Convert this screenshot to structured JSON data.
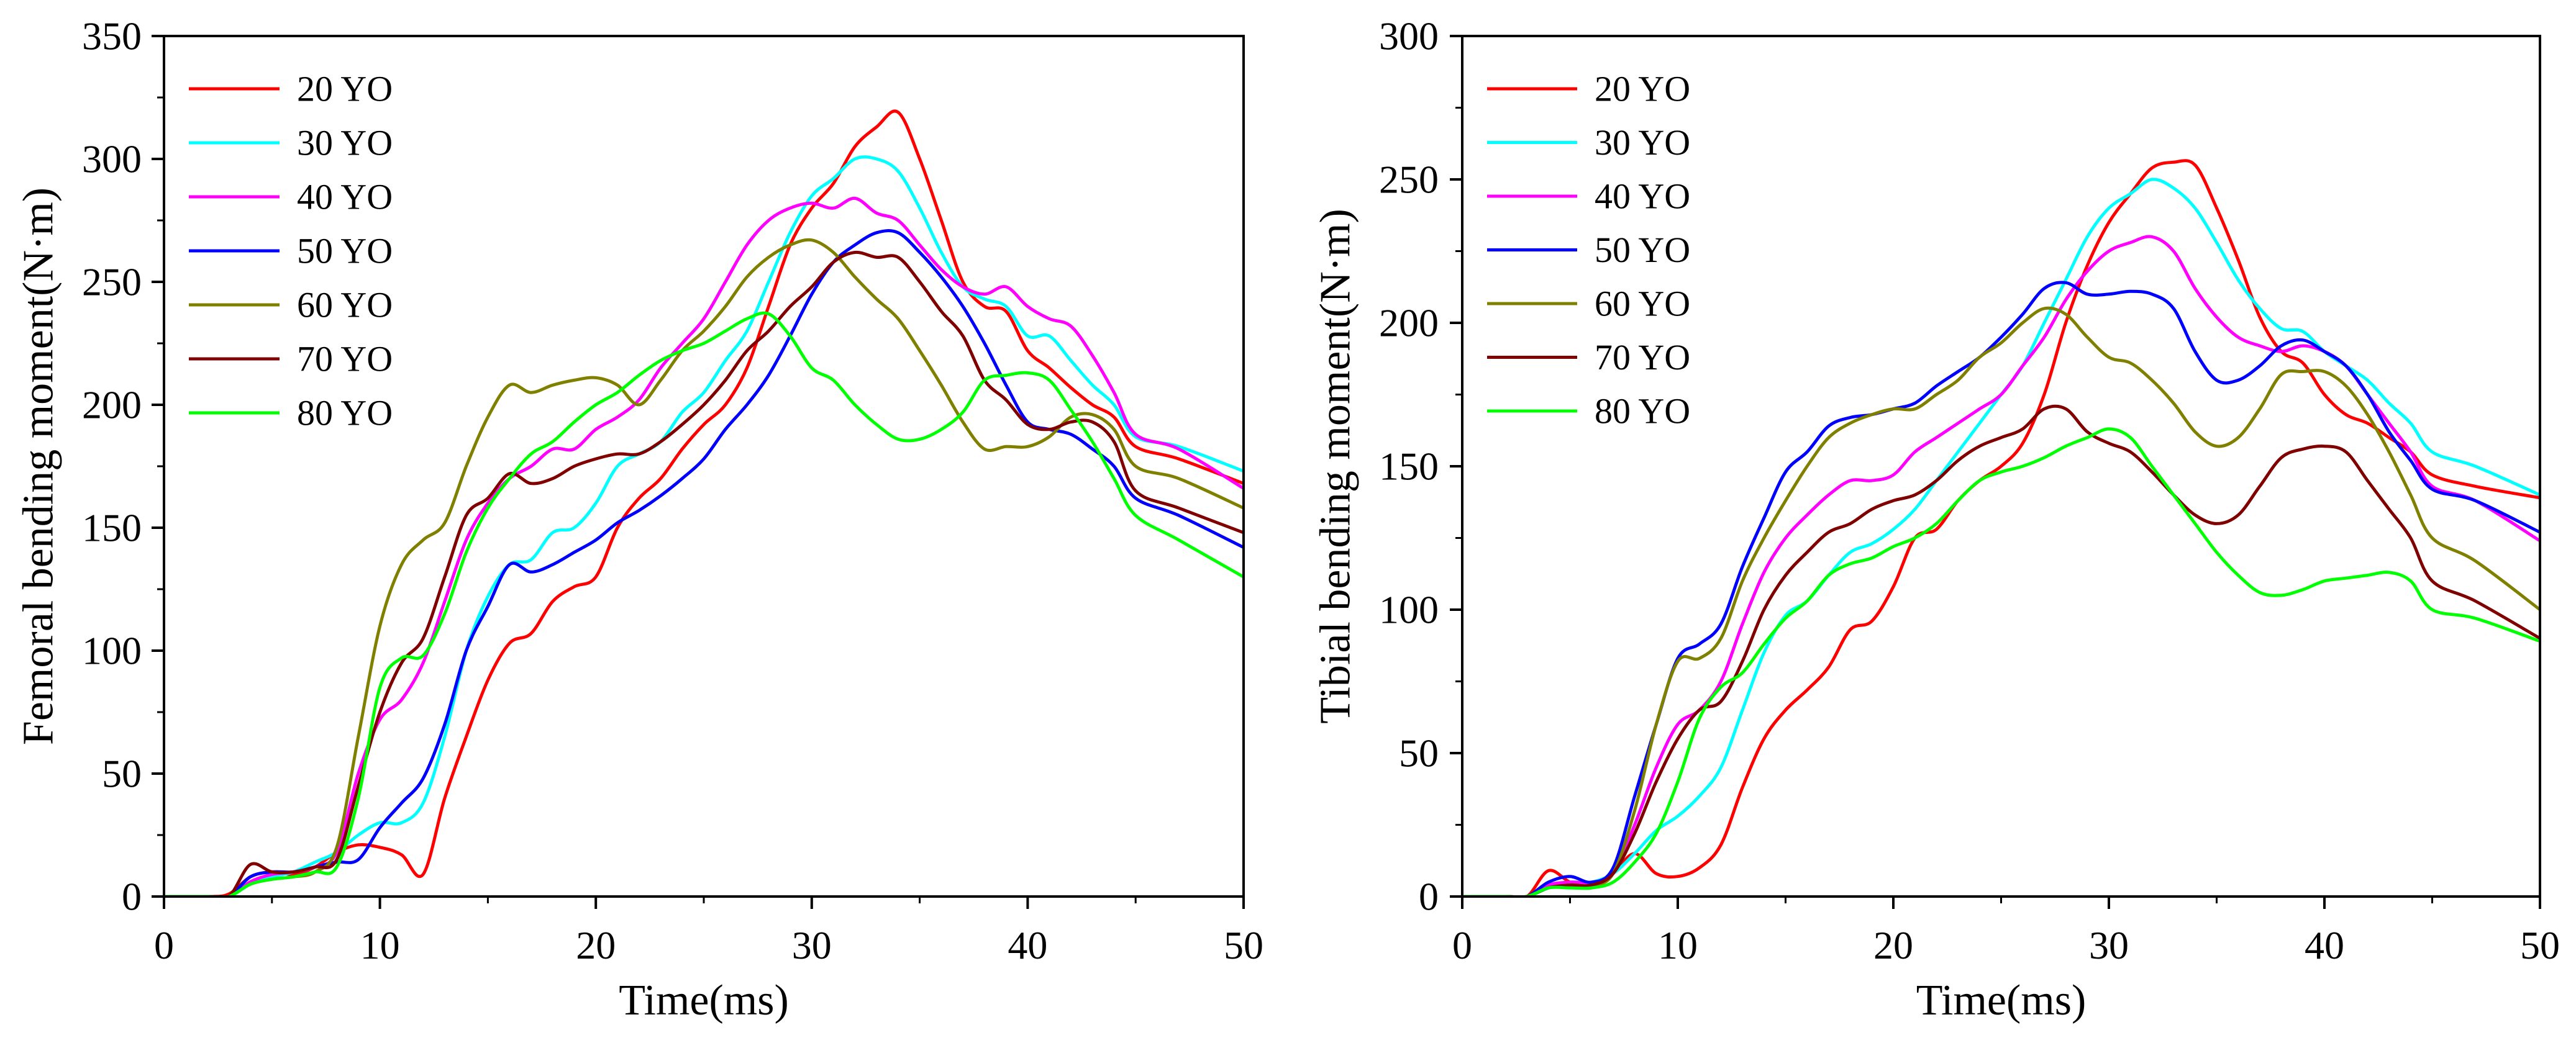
{
  "chart_data": [
    {
      "type": "line",
      "xlabel": "Time(ms)",
      "ylabel": "Femoral bending moment(N·m)",
      "xlim": [
        0,
        50
      ],
      "ylim": [
        0,
        350
      ],
      "xticks": [
        0,
        10,
        20,
        30,
        40,
        50
      ],
      "yticks": [
        0,
        50,
        100,
        150,
        200,
        250,
        300,
        350
      ],
      "grid": false,
      "legend": "top-left",
      "x": [
        0,
        2,
        3,
        4,
        5,
        6,
        7,
        8,
        9,
        10,
        11,
        12,
        13,
        14,
        15,
        16,
        17,
        18,
        19,
        20,
        21,
        22,
        23,
        24,
        25,
        26,
        27,
        28,
        29,
        30,
        31,
        32,
        33,
        34,
        35,
        36,
        37,
        38,
        39,
        40,
        41,
        42,
        43,
        44,
        45,
        47,
        50
      ],
      "series": [
        {
          "name": "20 YO",
          "color": "#ff0000",
          "values": [
            0,
            0,
            1,
            8,
            10,
            9,
            12,
            18,
            21,
            20,
            17,
            9,
            40,
            65,
            88,
            103,
            107,
            120,
            126,
            130,
            150,
            162,
            170,
            182,
            192,
            200,
            215,
            240,
            265,
            280,
            290,
            305,
            313,
            319,
            300,
            275,
            250,
            240,
            238,
            222,
            215,
            207,
            200,
            195,
            183,
            178,
            168
          ]
        },
        {
          "name": "30 YO",
          "color": "#00ffff",
          "values": [
            0,
            0,
            0,
            5,
            8,
            10,
            14,
            18,
            25,
            30,
            30,
            38,
            65,
            100,
            122,
            135,
            137,
            148,
            150,
            160,
            175,
            180,
            185,
            197,
            205,
            218,
            230,
            250,
            270,
            285,
            292,
            300,
            300,
            295,
            280,
            262,
            248,
            243,
            240,
            228,
            228,
            218,
            208,
            200,
            187,
            183,
            173
          ]
        },
        {
          "name": "40 YO",
          "color": "#ff00ff",
          "values": [
            0,
            0,
            0,
            6,
            9,
            10,
            12,
            18,
            50,
            72,
            80,
            95,
            120,
            145,
            160,
            170,
            175,
            182,
            182,
            190,
            195,
            202,
            215,
            225,
            235,
            250,
            265,
            275,
            280,
            282,
            280,
            284,
            278,
            275,
            265,
            255,
            248,
            245,
            248,
            240,
            235,
            232,
            220,
            205,
            188,
            182,
            166
          ]
        },
        {
          "name": "50 YO",
          "color": "#0000ff",
          "values": [
            0,
            0,
            0,
            8,
            10,
            10,
            12,
            14,
            15,
            28,
            38,
            48,
            70,
            100,
            118,
            135,
            132,
            135,
            140,
            145,
            152,
            157,
            163,
            170,
            178,
            190,
            200,
            212,
            228,
            245,
            258,
            265,
            270,
            270,
            262,
            252,
            240,
            225,
            208,
            193,
            190,
            188,
            182,
            175,
            162,
            155,
            142
          ]
        },
        {
          "name": "60 YO",
          "color": "#808000",
          "values": [
            0,
            0,
            0,
            5,
            7,
            8,
            10,
            20,
            65,
            110,
            135,
            145,
            152,
            175,
            195,
            208,
            205,
            208,
            210,
            211,
            208,
            200,
            210,
            222,
            230,
            240,
            252,
            260,
            265,
            267,
            262,
            252,
            243,
            235,
            222,
            208,
            193,
            182,
            183,
            183,
            187,
            195,
            196,
            190,
            175,
            170,
            158
          ]
        },
        {
          "name": "70 YO",
          "color": "#800000",
          "values": [
            0,
            0,
            0,
            13,
            10,
            10,
            12,
            15,
            45,
            75,
            95,
            105,
            130,
            155,
            162,
            172,
            168,
            170,
            175,
            178,
            180,
            180,
            185,
            192,
            200,
            210,
            222,
            230,
            240,
            248,
            258,
            262,
            260,
            260,
            250,
            238,
            228,
            210,
            202,
            192,
            190,
            193,
            193,
            185,
            165,
            158,
            148
          ]
        },
        {
          "name": "80 YO",
          "color": "#00ff00",
          "values": [
            0,
            0,
            0,
            5,
            7,
            8,
            10,
            12,
            40,
            85,
            97,
            98,
            115,
            140,
            158,
            170,
            180,
            185,
            193,
            200,
            205,
            212,
            218,
            222,
            225,
            230,
            235,
            237,
            228,
            215,
            210,
            200,
            192,
            186,
            186,
            190,
            197,
            210,
            212,
            213,
            210,
            198,
            185,
            170,
            155,
            145,
            130
          ]
        }
      ]
    },
    {
      "type": "line",
      "xlabel": "Time(ms)",
      "ylabel": "Tibial bending moment(N·m)",
      "xlim": [
        0,
        50
      ],
      "ylim": [
        0,
        300
      ],
      "xticks": [
        0,
        10,
        20,
        30,
        40,
        50
      ],
      "yticks": [
        0,
        50,
        100,
        150,
        200,
        250,
        300
      ],
      "grid": false,
      "legend": "top-left",
      "x": [
        0,
        2,
        3,
        4,
        5,
        6,
        7,
        8,
        9,
        10,
        11,
        12,
        13,
        14,
        15,
        16,
        17,
        18,
        19,
        20,
        21,
        22,
        23,
        24,
        25,
        26,
        27,
        28,
        29,
        30,
        31,
        32,
        33,
        34,
        35,
        36,
        37,
        38,
        39,
        40,
        41,
        42,
        43,
        44,
        45,
        47,
        50
      ],
      "series": [
        {
          "name": "20 YO",
          "color": "#ff0000",
          "values": [
            0,
            0,
            0,
            9,
            5,
            3,
            8,
            15,
            8,
            7,
            10,
            18,
            38,
            55,
            65,
            72,
            80,
            93,
            96,
            108,
            125,
            128,
            138,
            145,
            150,
            158,
            175,
            200,
            220,
            235,
            245,
            254,
            256,
            255,
            240,
            222,
            202,
            190,
            186,
            175,
            168,
            165,
            160,
            155,
            147,
            143,
            139
          ]
        },
        {
          "name": "30 YO",
          "color": "#00ffff",
          "values": [
            0,
            0,
            0,
            3,
            5,
            5,
            8,
            15,
            23,
            28,
            35,
            45,
            65,
            85,
            98,
            103,
            112,
            120,
            123,
            128,
            135,
            145,
            155,
            165,
            175,
            185,
            200,
            215,
            230,
            240,
            245,
            250,
            247,
            240,
            228,
            215,
            205,
            198,
            197,
            190,
            185,
            180,
            172,
            165,
            155,
            150,
            140
          ]
        },
        {
          "name": "40 YO",
          "color": "#ff00ff",
          "values": [
            0,
            0,
            0,
            4,
            5,
            5,
            8,
            25,
            45,
            60,
            65,
            75,
            95,
            113,
            125,
            133,
            140,
            145,
            145,
            147,
            155,
            160,
            165,
            170,
            175,
            185,
            195,
            208,
            218,
            225,
            228,
            230,
            225,
            212,
            202,
            195,
            192,
            190,
            192,
            190,
            185,
            175,
            165,
            155,
            143,
            138,
            124
          ]
        },
        {
          "name": "50 YO",
          "color": "#0000ff",
          "values": [
            0,
            0,
            0,
            5,
            7,
            5,
            10,
            35,
            60,
            83,
            88,
            95,
            115,
            132,
            148,
            155,
            164,
            167,
            168,
            170,
            172,
            178,
            183,
            188,
            195,
            203,
            212,
            214,
            210,
            210,
            211,
            210,
            205,
            190,
            180,
            180,
            185,
            192,
            194,
            190,
            185,
            175,
            162,
            152,
            142,
            138,
            127
          ]
        },
        {
          "name": "60 YO",
          "color": "#808000",
          "values": [
            0,
            0,
            0,
            3,
            4,
            4,
            8,
            30,
            60,
            82,
            83,
            90,
            110,
            125,
            138,
            150,
            160,
            165,
            168,
            170,
            170,
            175,
            180,
            188,
            193,
            200,
            205,
            203,
            195,
            188,
            186,
            180,
            172,
            162,
            157,
            160,
            170,
            182,
            183,
            183,
            178,
            168,
            155,
            140,
            125,
            117,
            100
          ]
        },
        {
          "name": "70 YO",
          "color": "#800000",
          "values": [
            0,
            0,
            0,
            3,
            4,
            4,
            8,
            22,
            40,
            55,
            65,
            68,
            82,
            100,
            112,
            120,
            127,
            130,
            135,
            138,
            140,
            145,
            152,
            157,
            160,
            163,
            170,
            170,
            162,
            158,
            155,
            148,
            140,
            133,
            130,
            133,
            143,
            153,
            156,
            157,
            155,
            145,
            135,
            125,
            110,
            103,
            90
          ]
        },
        {
          "name": "80 YO",
          "color": "#00ff00",
          "values": [
            0,
            0,
            0,
            3,
            3,
            3,
            5,
            12,
            22,
            40,
            62,
            73,
            78,
            88,
            97,
            103,
            112,
            116,
            118,
            122,
            125,
            130,
            138,
            145,
            148,
            150,
            153,
            157,
            160,
            163,
            160,
            150,
            140,
            130,
            120,
            112,
            106,
            105,
            107,
            110,
            111,
            112,
            113,
            110,
            100,
            97,
            89
          ]
        }
      ]
    }
  ]
}
